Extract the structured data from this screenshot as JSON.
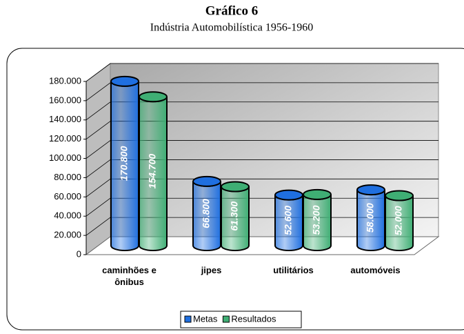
{
  "chart_data": {
    "type": "bar",
    "title": "Gráfico 6",
    "subtitle": "Indústria Automobilística 1956-1960",
    "categories": [
      "caminhões e ônibus",
      "jipes",
      "utilitários",
      "automóveis"
    ],
    "series": [
      {
        "name": "Metas",
        "color": "#1f6fe0",
        "values": [
          170800,
          66800,
          52600,
          58000
        ],
        "value_labels": [
          "170.800",
          "66.800",
          "52.600",
          "58.000"
        ]
      },
      {
        "name": "Resultados",
        "color": "#3fae74",
        "values": [
          154700,
          61300,
          53200,
          52000
        ],
        "value_labels": [
          "154.700",
          "61.300",
          "53.200",
          "52.000"
        ]
      }
    ],
    "ylim": [
      0,
      180000
    ],
    "yticks": [
      0,
      {
        "value": 20000,
        "label": "20.000"
      },
      {
        "value": 40000,
        "label": "40.000"
      },
      {
        "value": 60000,
        "label": "60.000"
      },
      {
        "value": 80000,
        "label": "80.000"
      },
      {
        "value": 100000,
        "label": "100.000"
      },
      {
        "value": 120000,
        "label": "120.000"
      },
      {
        "value": 140000,
        "label": "140.000"
      },
      {
        "value": 160000,
        "label": "160.000"
      },
      {
        "value": 180000,
        "label": "180.000"
      }
    ],
    "grid": true,
    "legend": "bottom"
  }
}
